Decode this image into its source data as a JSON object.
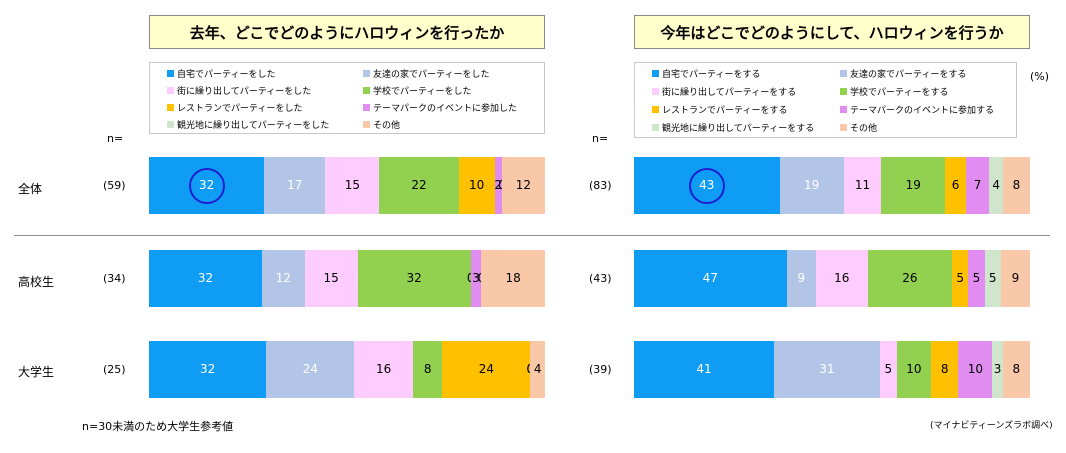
{
  "colors": [
    "#0f9cf5",
    "#b2c5e6",
    "#ffccff",
    "#92d050",
    "#ffc000",
    "#e08cf0",
    "#cfe6cc",
    "#f9c8a8"
  ],
  "text_colors": [
    "#ffffff",
    "#ffffff",
    "#000000",
    "#000000",
    "#000000",
    "#000000",
    "#000000",
    "#000000"
  ],
  "n_label": "n=",
  "unit_label": "(%)",
  "footnote_left": "n=30未満のため大学生参考値",
  "footnote_right": "(マイナビティーンズラボ調べ)",
  "row_names": [
    "全体",
    "高校生",
    "大学生"
  ],
  "chart_data": [
    {
      "type": "bar",
      "orientation": "horizontal-stacked-100",
      "title": "去年、どこでどのようにハロウィンを行ったか",
      "categories": [
        "全体",
        "高校生",
        "大学生"
      ],
      "n": [
        "(59)",
        "(34)",
        "(25)"
      ],
      "series": [
        {
          "name": "自宅でパーティーをした",
          "values": [
            32,
            32,
            32
          ]
        },
        {
          "name": "友達の家でパーティーをした",
          "values": [
            17,
            12,
            24
          ]
        },
        {
          "name": "街に繰り出してパーティーをした",
          "values": [
            15,
            15,
            16
          ]
        },
        {
          "name": "学校でパーティーをした",
          "values": [
            22,
            32,
            8
          ]
        },
        {
          "name": "レストランでパーティーをした",
          "values": [
            10,
            0,
            24
          ]
        },
        {
          "name": "テーマパークのイベントに参加した",
          "values": [
            2,
            3,
            0
          ]
        },
        {
          "name": "観光地に繰り出してパーティーをした",
          "values": [
            0,
            0,
            0
          ]
        },
        {
          "name": "その他",
          "values": [
            12,
            18,
            4
          ]
        }
      ],
      "highlight": {
        "series": 0,
        "category": 0
      }
    },
    {
      "type": "bar",
      "orientation": "horizontal-stacked-100",
      "title": "今年はどこでどのようにして、ハロウィンを行うか",
      "categories": [
        "全体",
        "高校生",
        "大学生"
      ],
      "n": [
        "(83)",
        "(43)",
        "(39)"
      ],
      "series": [
        {
          "name": "自宅でパーティーをする",
          "values": [
            43,
            47,
            41
          ]
        },
        {
          "name": "友達の家でパーティーをする",
          "values": [
            19,
            9,
            31
          ]
        },
        {
          "name": "街に繰り出してパーティーをする",
          "values": [
            11,
            16,
            5
          ]
        },
        {
          "name": "学校でパーティーをする",
          "values": [
            19,
            26,
            10
          ]
        },
        {
          "name": "レストランでパーティーをする",
          "values": [
            6,
            5,
            8
          ]
        },
        {
          "name": "テーマパークのイベントに参加する",
          "values": [
            7,
            5,
            10
          ]
        },
        {
          "name": "観光地に繰り出してパーティーをする",
          "values": [
            4,
            5,
            3
          ]
        },
        {
          "name": "その他",
          "values": [
            8,
            9,
            8
          ]
        }
      ],
      "highlight": {
        "series": 0,
        "category": 0
      }
    }
  ]
}
